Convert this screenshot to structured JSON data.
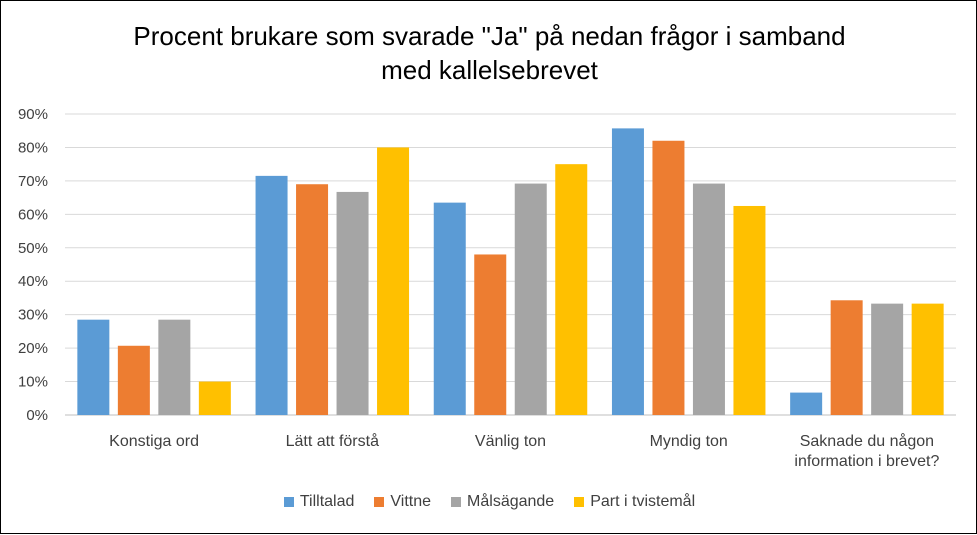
{
  "chart_data": {
    "type": "bar",
    "title_lines": [
      "Procent brukare som svarade \"Ja\" på nedan frågor i samband",
      "med kallelsebrevet"
    ],
    "categories": [
      [
        "Konstiga ord"
      ],
      [
        "Lätt att förstå"
      ],
      [
        "Vänlig ton"
      ],
      [
        "Myndig ton"
      ],
      [
        "Saknade du någon",
        "information i brevet?"
      ]
    ],
    "series": [
      {
        "name": "Tilltalad",
        "color": "#5B9BD5",
        "values": [
          28.5,
          71.5,
          63.5,
          85.7,
          6.7
        ]
      },
      {
        "name": "Vittne",
        "color": "#ED7D31",
        "values": [
          20.7,
          69.0,
          48.0,
          82.0,
          34.3
        ]
      },
      {
        "name": "Målsägande",
        "color": "#A5A5A5",
        "values": [
          28.5,
          66.7,
          69.2,
          69.2,
          33.3
        ]
      },
      {
        "name": "Part i tvistemål",
        "color": "#FFC000",
        "values": [
          10.0,
          80.0,
          75.0,
          62.5,
          33.3
        ]
      }
    ],
    "yticks": [
      "0%",
      "10%",
      "20%",
      "30%",
      "40%",
      "50%",
      "60%",
      "70%",
      "80%",
      "90%"
    ],
    "ylim": [
      0,
      90
    ],
    "grid": true,
    "legend_position": "bottom"
  }
}
